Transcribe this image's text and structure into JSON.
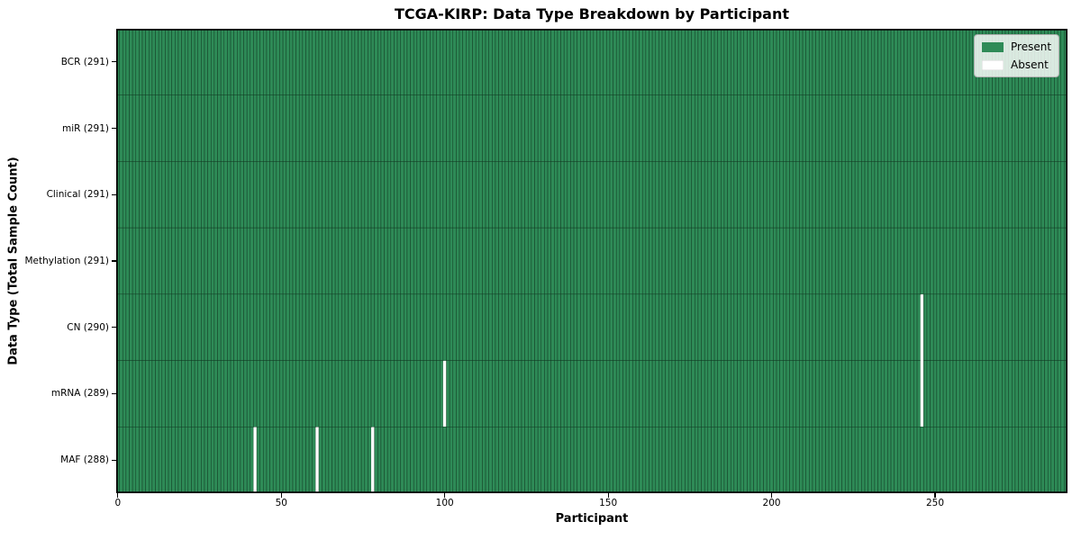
{
  "chart_data": {
    "type": "heatmap",
    "title": "TCGA-KIRP: Data Type Breakdown by Participant",
    "xlabel": "Participant",
    "ylabel": "Data Type (Total Sample Count)",
    "n_participants": 291,
    "x_ticks": [
      0,
      50,
      100,
      150,
      200,
      250
    ],
    "x_range": [
      -0.5,
      290.5
    ],
    "grid": false,
    "legend_position": "upper right",
    "rows": [
      {
        "label": "BCR (291)",
        "data_type": "BCR",
        "total_samples": 291,
        "absent_participants": []
      },
      {
        "label": "miR (291)",
        "data_type": "miR",
        "total_samples": 291,
        "absent_participants": []
      },
      {
        "label": "Clinical (291)",
        "data_type": "Clinical",
        "total_samples": 291,
        "absent_participants": []
      },
      {
        "label": "Methylation (291)",
        "data_type": "Methylation",
        "total_samples": 291,
        "absent_participants": []
      },
      {
        "label": "CN (290)",
        "data_type": "CN",
        "total_samples": 290,
        "absent_participants": [
          246
        ]
      },
      {
        "label": "mRNA (289)",
        "data_type": "mRNA",
        "total_samples": 289,
        "absent_participants": [
          100,
          246
        ]
      },
      {
        "label": "MAF (288)",
        "data_type": "MAF",
        "total_samples": 288,
        "absent_participants": [
          42,
          61,
          78
        ]
      }
    ],
    "legend": [
      {
        "label": "Present",
        "color": "#2e8b57"
      },
      {
        "label": "Absent",
        "color": "#ffffff"
      }
    ],
    "colors": {
      "present": "#2e8b57",
      "absent": "#ffffff",
      "cell_edge": "#123c24",
      "spine": "#000000",
      "tick": "#000000",
      "background": "#ffffff"
    }
  }
}
